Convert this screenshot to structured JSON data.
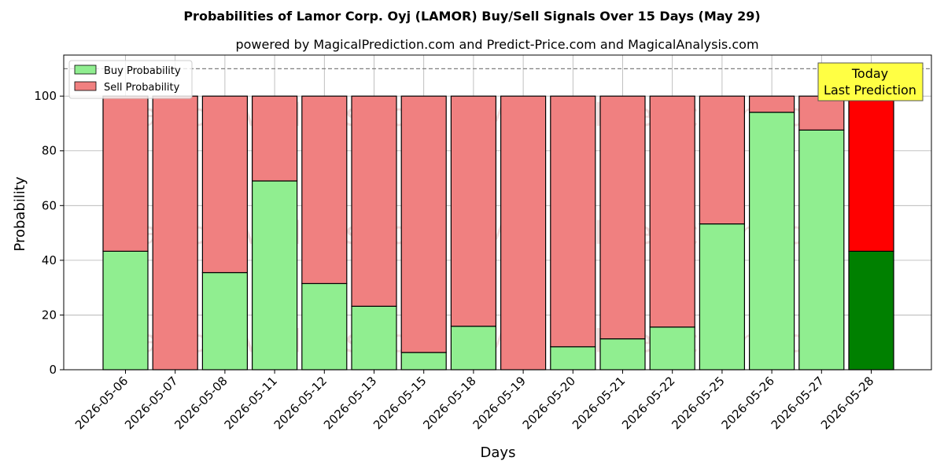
{
  "chart_data": {
    "type": "bar",
    "stacked": true,
    "title": "Probabilities of Lamor Corp. Oyj (LAMOR) Buy/Sell Signals Over 15 Days (May 29)",
    "subtitle": "powered by MagicalPrediction.com and Predict-Price.com and MagicalAnalysis.com",
    "xlabel": "Days",
    "ylabel": "Probability",
    "ylim": [
      0,
      115
    ],
    "yticks": [
      0,
      20,
      40,
      60,
      80,
      100
    ],
    "grid": true,
    "legend_position": "top-left",
    "reference_line": 110,
    "categories": [
      "2026-05-06",
      "2026-05-07",
      "2026-05-08",
      "2026-05-11",
      "2026-05-12",
      "2026-05-13",
      "2026-05-15",
      "2026-05-18",
      "2026-05-19",
      "2026-05-20",
      "2026-05-21",
      "2026-05-22",
      "2026-05-25",
      "2026-05-26",
      "2026-05-27",
      "2026-05-28"
    ],
    "series": [
      {
        "name": "Buy Probability",
        "color": "#90ee90",
        "highlight_color": "#008000",
        "values": [
          43.3,
          0,
          35.5,
          69,
          31.5,
          23.2,
          6.3,
          15.9,
          0,
          8.4,
          11.3,
          15.6,
          53.3,
          94.1,
          87.6,
          43.3
        ]
      },
      {
        "name": "Sell Probability",
        "color": "#f08080",
        "highlight_color": "#ff0000",
        "values": [
          56.7,
          100,
          64.5,
          31,
          68.5,
          76.8,
          93.7,
          84.1,
          100,
          91.6,
          88.7,
          84.4,
          46.7,
          5.9,
          12.4,
          56.7
        ]
      }
    ],
    "highlight_index": 15,
    "annotation": {
      "line1": "Today",
      "line2": "Last Prediction",
      "background": "#ffff44"
    },
    "watermarks": [
      "MagicalAnalysis.com",
      "MagicalPrediction.com"
    ]
  }
}
